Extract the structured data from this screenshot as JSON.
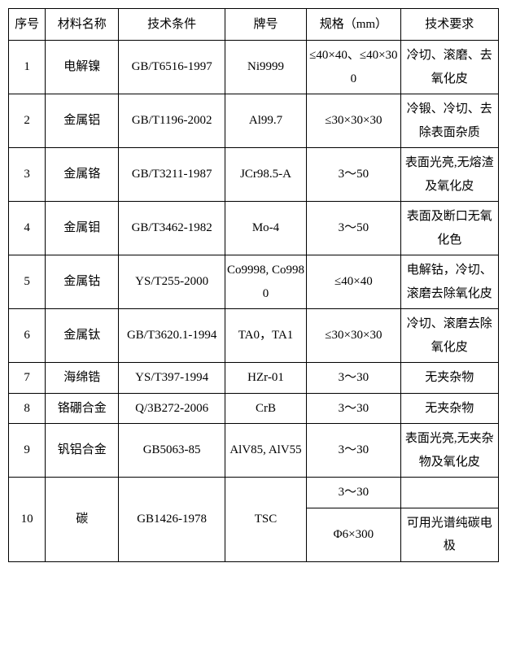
{
  "headers": {
    "idx": "序号",
    "name": "材料名称",
    "cond": "技术条件",
    "grade": "牌号",
    "spec": "规格（mm）",
    "req": "技术要求"
  },
  "rows": {
    "r1": {
      "idx": "1",
      "name": "电解镍",
      "cond": "GB/T6516-1997",
      "grade": "Ni9999",
      "spec": "≤40×40、≤40×300",
      "req": "冷切、滚磨、去氧化皮"
    },
    "r2": {
      "idx": "2",
      "name": "金属铝",
      "cond": "GB/T1196-2002",
      "grade": "Al99.7",
      "spec": "≤30×30×30",
      "req": "冷锻、冷切、去除表面杂质"
    },
    "r3": {
      "idx": "3",
      "name": "金属铬",
      "cond": "GB/T3211-1987",
      "grade": "JCr98.5-A",
      "spec": "3～50",
      "req": "表面光亮,无熔渣及氧化皮"
    },
    "r4": {
      "idx": "4",
      "name": "金属钼",
      "cond": "GB/T3462-1982",
      "grade": "Mo-4",
      "spec": "3～50",
      "req": "表面及断口无氧化色"
    },
    "r5": {
      "idx": "5",
      "name": "金属钴",
      "cond": "YS/T255-2000",
      "grade": "Co9998, Co9980",
      "spec": "≤40×40",
      "req": "电解钴，冷切、滚磨去除氧化皮"
    },
    "r6": {
      "idx": "6",
      "name": "金属钛",
      "cond": "GB/T3620.1-1994",
      "grade": "TA0，TA1",
      "spec": "≤30×30×30",
      "req": "冷切、滚磨去除氧化皮"
    },
    "r7": {
      "idx": "7",
      "name": "海绵锆",
      "cond": "YS/T397-1994",
      "grade": "HZr-01",
      "spec": "3～30",
      "req": "无夹杂物"
    },
    "r8": {
      "idx": "8",
      "name": "铬硼合金",
      "cond": "Q/3B272-2006",
      "grade": "CrB",
      "spec": "3～30",
      "req": "无夹杂物"
    },
    "r9": {
      "idx": "9",
      "name": "钒铝合金",
      "cond": "GB5063-85",
      "grade": "AlV85, AlV55",
      "spec": "3～30",
      "req": "表面光亮,无夹杂物及氧化皮"
    },
    "r10": {
      "idx": "10",
      "name": "碳",
      "cond": "GB1426-1978",
      "grade": "TSC",
      "spec1": "3～30",
      "req1": "",
      "spec2": "Φ6×300",
      "req2": "可用光谱纯碳电极"
    }
  },
  "colors": {
    "border": "#000000",
    "background": "#ffffff",
    "text": "#000000"
  },
  "font": {
    "family": "SimSun",
    "size_pt": 15
  }
}
